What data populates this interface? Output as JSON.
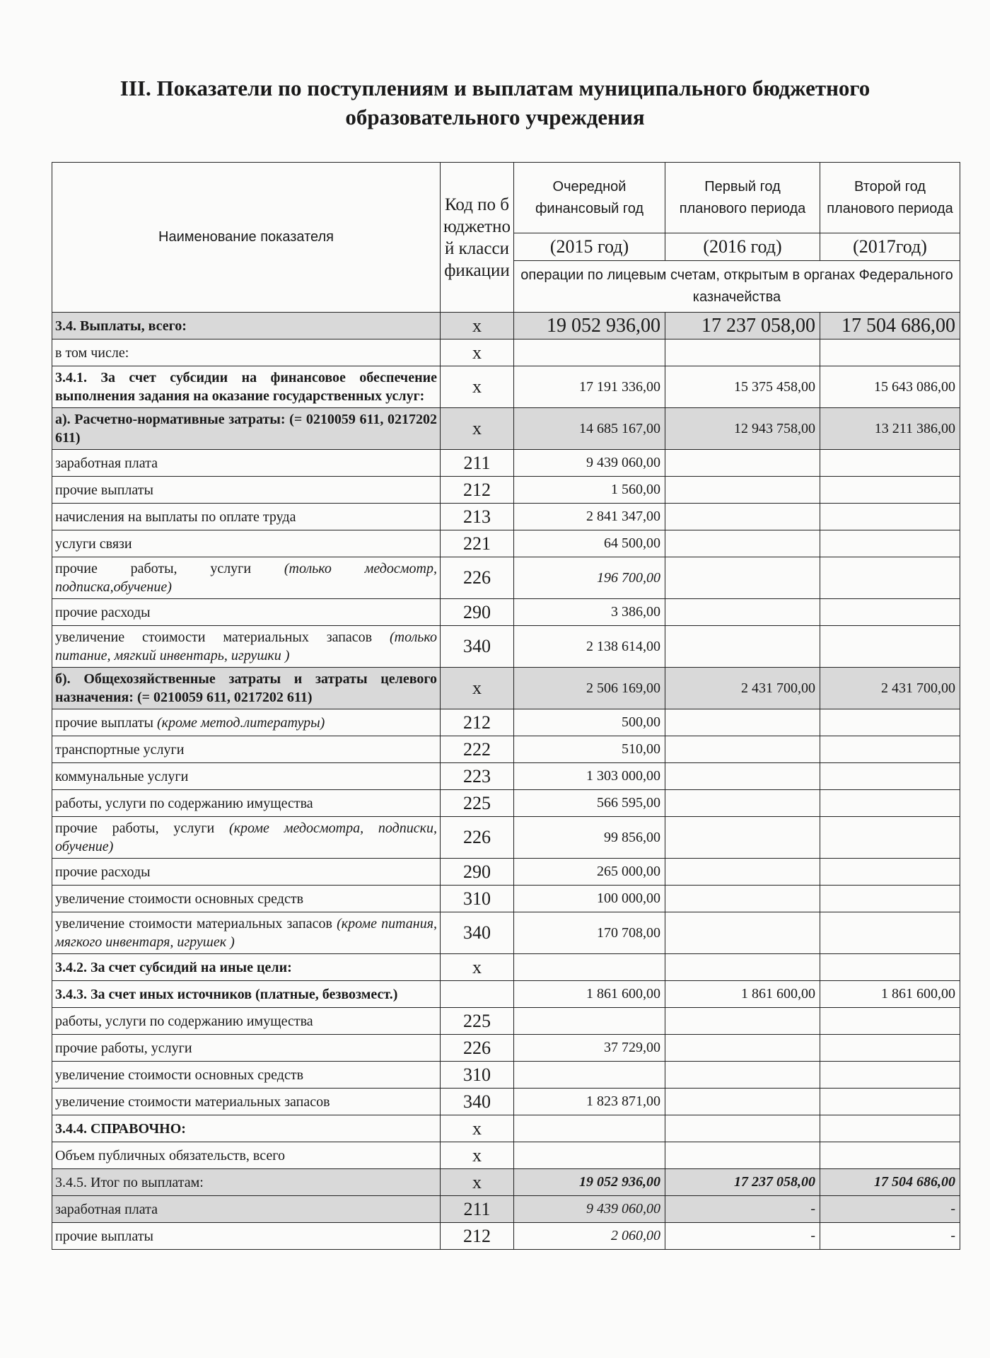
{
  "header": {
    "title": "III. Показатели по поступлениям и выплатам муниципального бюджетного образовательного учреждения"
  },
  "table": {
    "columns": {
      "name": "Наименование показателя",
      "code": "Код по бюджетной классификации",
      "periods": [
        "Очередной финансовый год",
        "Первый год планового периода",
        "Второй год планового периода"
      ],
      "years": [
        "(2015 год)",
        "(2016 год)",
        "(2017год)"
      ],
      "operations": "операции по лицевым счетам, открытым в органах Федерального казначейства"
    },
    "rows": [
      {
        "name": "3.4. Выплаты, всего:",
        "code": "х",
        "values": [
          "19 052 936,00",
          "17 237 058,00",
          "17 504 686,00"
        ],
        "bold": true,
        "shaded": true,
        "large": true
      },
      {
        "name": "в том числе:",
        "code": "х",
        "values": [
          null,
          null,
          null
        ]
      },
      {
        "name": "3.4.1. За счет субсидии на финансовое обеспечение выполнения задания на оказание государственных услуг:",
        "code": "х",
        "values": [
          "17 191 336,00",
          "15 375 458,00",
          "15 643 086,00"
        ],
        "bold": true
      },
      {
        "name": "а). Расчетно-нормативные затраты: (= 0210059 611, 0217202 611)",
        "code": "х",
        "values": [
          "14 685 167,00",
          "12 943 758,00",
          "13 211 386,00"
        ],
        "bold": true,
        "shaded": true
      },
      {
        "name": "заработная плата",
        "code": "211",
        "values": [
          "9 439 060,00",
          null,
          null
        ]
      },
      {
        "name": "прочие выплаты",
        "code": "212",
        "values": [
          "1 560,00",
          null,
          null
        ]
      },
      {
        "name": "начисления на выплаты по оплате труда",
        "code": "213",
        "values": [
          "2 841 347,00",
          null,
          null
        ]
      },
      {
        "name": "услуги связи",
        "code": "221",
        "values": [
          "64 500,00",
          null,
          null
        ]
      },
      {
        "name": "прочие работы, услуги",
        "note": "(только медосмотр, подписка,обучение)",
        "code": "226",
        "values": [
          "196 700,00",
          null,
          null
        ],
        "italic_values": true
      },
      {
        "name": "прочие расходы",
        "code": "290",
        "values": [
          "3 386,00",
          null,
          null
        ]
      },
      {
        "name": "увеличение стоимости материальных запасов",
        "note": "(только питание, мягкий инвентарь, игрушки )",
        "code": "340",
        "values": [
          "2 138 614,00",
          null,
          null
        ]
      },
      {
        "name": "б). Общехозяйственные затраты и затраты целевого назначения: (= 0210059 611, 0217202 611)",
        "code": "х",
        "values": [
          "2 506 169,00",
          "2 431 700,00",
          "2 431 700,00"
        ],
        "bold": true,
        "shaded": true
      },
      {
        "name": "прочие выплаты",
        "note": "(кроме метод.литературы)",
        "code": "212",
        "values": [
          "500,00",
          null,
          null
        ]
      },
      {
        "name": "транспортные услуги",
        "code": "222",
        "values": [
          "510,00",
          null,
          null
        ]
      },
      {
        "name": "коммунальные услуги",
        "code": "223",
        "values": [
          "1 303 000,00",
          null,
          null
        ]
      },
      {
        "name": "работы, услуги по содержанию имущества",
        "code": "225",
        "values": [
          "566 595,00",
          null,
          null
        ]
      },
      {
        "name": "прочие работы, услуги",
        "note": "(кроме медосмотра, подписки, обучение)",
        "code": "226",
        "values": [
          "99 856,00",
          null,
          null
        ]
      },
      {
        "name": "прочие расходы",
        "code": "290",
        "values": [
          "265 000,00",
          null,
          null
        ]
      },
      {
        "name": "увеличение стоимости основных средств",
        "code": "310",
        "values": [
          "100 000,00",
          null,
          null
        ]
      },
      {
        "name": "увеличение стоимости материальных запасов",
        "note": "(кроме питания, мягкого инвентаря, игрушек )",
        "code": "340",
        "values": [
          "170 708,00",
          null,
          null
        ]
      },
      {
        "name": "3.4.2. За счет субсидий на иные цели:",
        "code": "х",
        "values": [
          null,
          null,
          null
        ],
        "bold": true
      },
      {
        "name": "3.4.3. За счет иных источников (платные, безвозмест.)",
        "code": null,
        "values": [
          "1 861 600,00",
          "1 861 600,00",
          "1 861 600,00"
        ],
        "bold": true
      },
      {
        "name": "работы, услуги по содержанию имущества",
        "code": "225",
        "values": [
          null,
          null,
          null
        ]
      },
      {
        "name": "прочие работы, услуги",
        "code": "226",
        "values": [
          "37 729,00",
          null,
          null
        ]
      },
      {
        "name": "увеличение стоимости основных средств",
        "code": "310",
        "values": [
          null,
          null,
          null
        ]
      },
      {
        "name": "увеличение стоимости материальных запасов",
        "code": "340",
        "values": [
          "1 823 871,00",
          null,
          null
        ]
      },
      {
        "name": "3.4.4. СПРАВОЧНО:",
        "code": "х",
        "values": [
          null,
          null,
          null
        ],
        "bold": true
      },
      {
        "name": "Объем публичных обязательств, всего",
        "code": "х",
        "values": [
          null,
          null,
          null
        ]
      },
      {
        "name": "3.4.5. Итог по выплатам:",
        "code": "х",
        "values": [
          "19 052 936,00",
          "17 237 058,00",
          "17 504 686,00"
        ],
        "shaded": true,
        "bold_values": true,
        "italic_values": true
      },
      {
        "name": "заработная плата",
        "code": "211",
        "values": [
          "9 439 060,00",
          "-",
          "-"
        ],
        "shaded": true,
        "italic_values": true
      },
      {
        "name": "прочие выплаты",
        "code": "212",
        "values": [
          "2 060,00",
          "-",
          "-"
        ],
        "italic_values": true
      }
    ]
  }
}
